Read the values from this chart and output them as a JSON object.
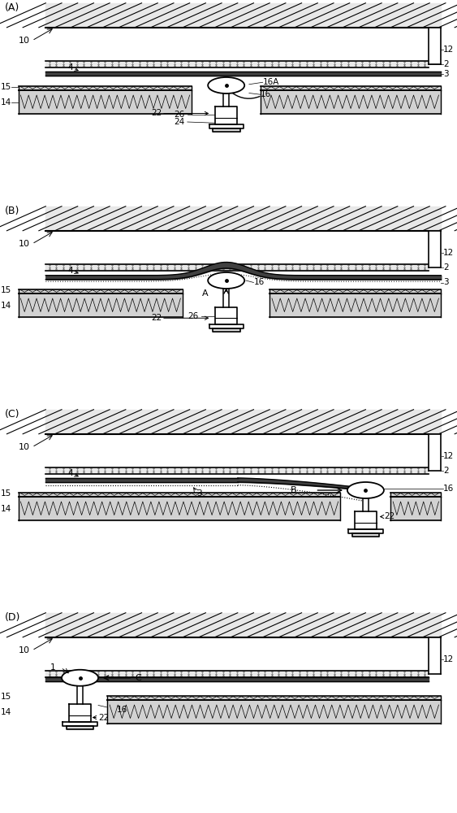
{
  "bg_color": "#ffffff",
  "panel_labels": [
    "(A)",
    "(B)",
    "(C)",
    "(D)"
  ],
  "fig_w": 5.63,
  "fig_h": 10.0,
  "dpi": 100,
  "ceiling_hatch_color": "#000000",
  "layer_texture_color": "#c8c8c8",
  "substrate_texture_color": "#d8d8d8",
  "white": "#ffffff",
  "black": "#000000",
  "gray_fill": "#e0e0e0"
}
